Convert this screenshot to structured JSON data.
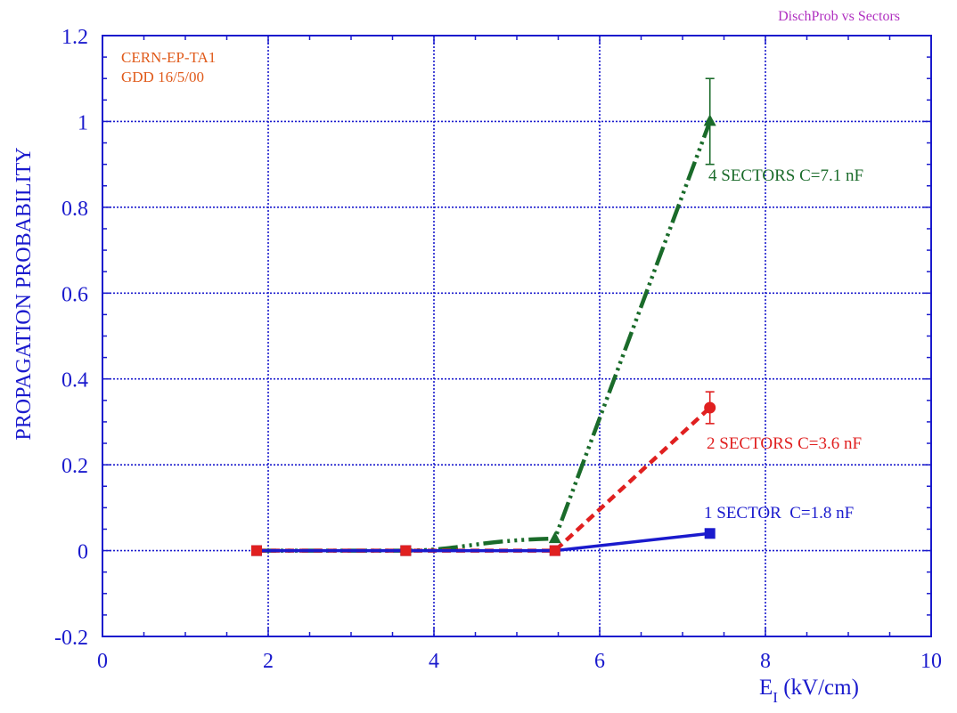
{
  "header_note": "DischProb vs Sectors",
  "corner_text": {
    "line1": "CERN-EP-TA1",
    "line2": "GDD 16/5/00"
  },
  "colors": {
    "axis": "#1a1acd",
    "header_note": "#b030c0",
    "corner_text": "#e05a1a",
    "series_1": "#1a1acd",
    "series_2": "#e02020",
    "series_3": "#1a6b2a"
  },
  "chart_data": {
    "type": "line",
    "title": "",
    "xlabel_main": "E",
    "xlabel_sub": "I",
    "xlabel_unit": " (kV/cm)",
    "ylabel": "PROPAGATION PROBABILITY",
    "xlim": [
      0,
      10
    ],
    "ylim": [
      -0.2,
      1.2
    ],
    "x_ticks": [
      "0",
      "2",
      "4",
      "6",
      "8",
      "10"
    ],
    "y_ticks": [
      "-0.2",
      "0",
      "0.2",
      "0.4",
      "0.6",
      "0.8",
      "1",
      "1.2"
    ],
    "grid": true,
    "series": [
      {
        "name": "1 SECTOR  C=1.8 nF",
        "marker": "square",
        "dash": "solid",
        "x": [
          1.86,
          3.66,
          5.46,
          7.33
        ],
        "y": [
          0,
          0,
          0,
          0.04
        ]
      },
      {
        "name": "2 SECTORS C=3.6 nF",
        "marker": "circle",
        "dash": "dashed",
        "x": [
          1.86,
          3.66,
          5.46,
          7.33
        ],
        "y": [
          0,
          0,
          0,
          0.333
        ],
        "error": [
          0,
          0,
          0,
          0.037
        ]
      },
      {
        "name": "4 SECTORS C=7.1 nF",
        "marker": "triangle",
        "dash": "dash-dot",
        "x": [
          1.86,
          3.66,
          5.46,
          7.33
        ],
        "y": [
          0,
          0,
          0.028,
          1.0
        ],
        "error": [
          0,
          0,
          0,
          0.1
        ]
      }
    ]
  }
}
